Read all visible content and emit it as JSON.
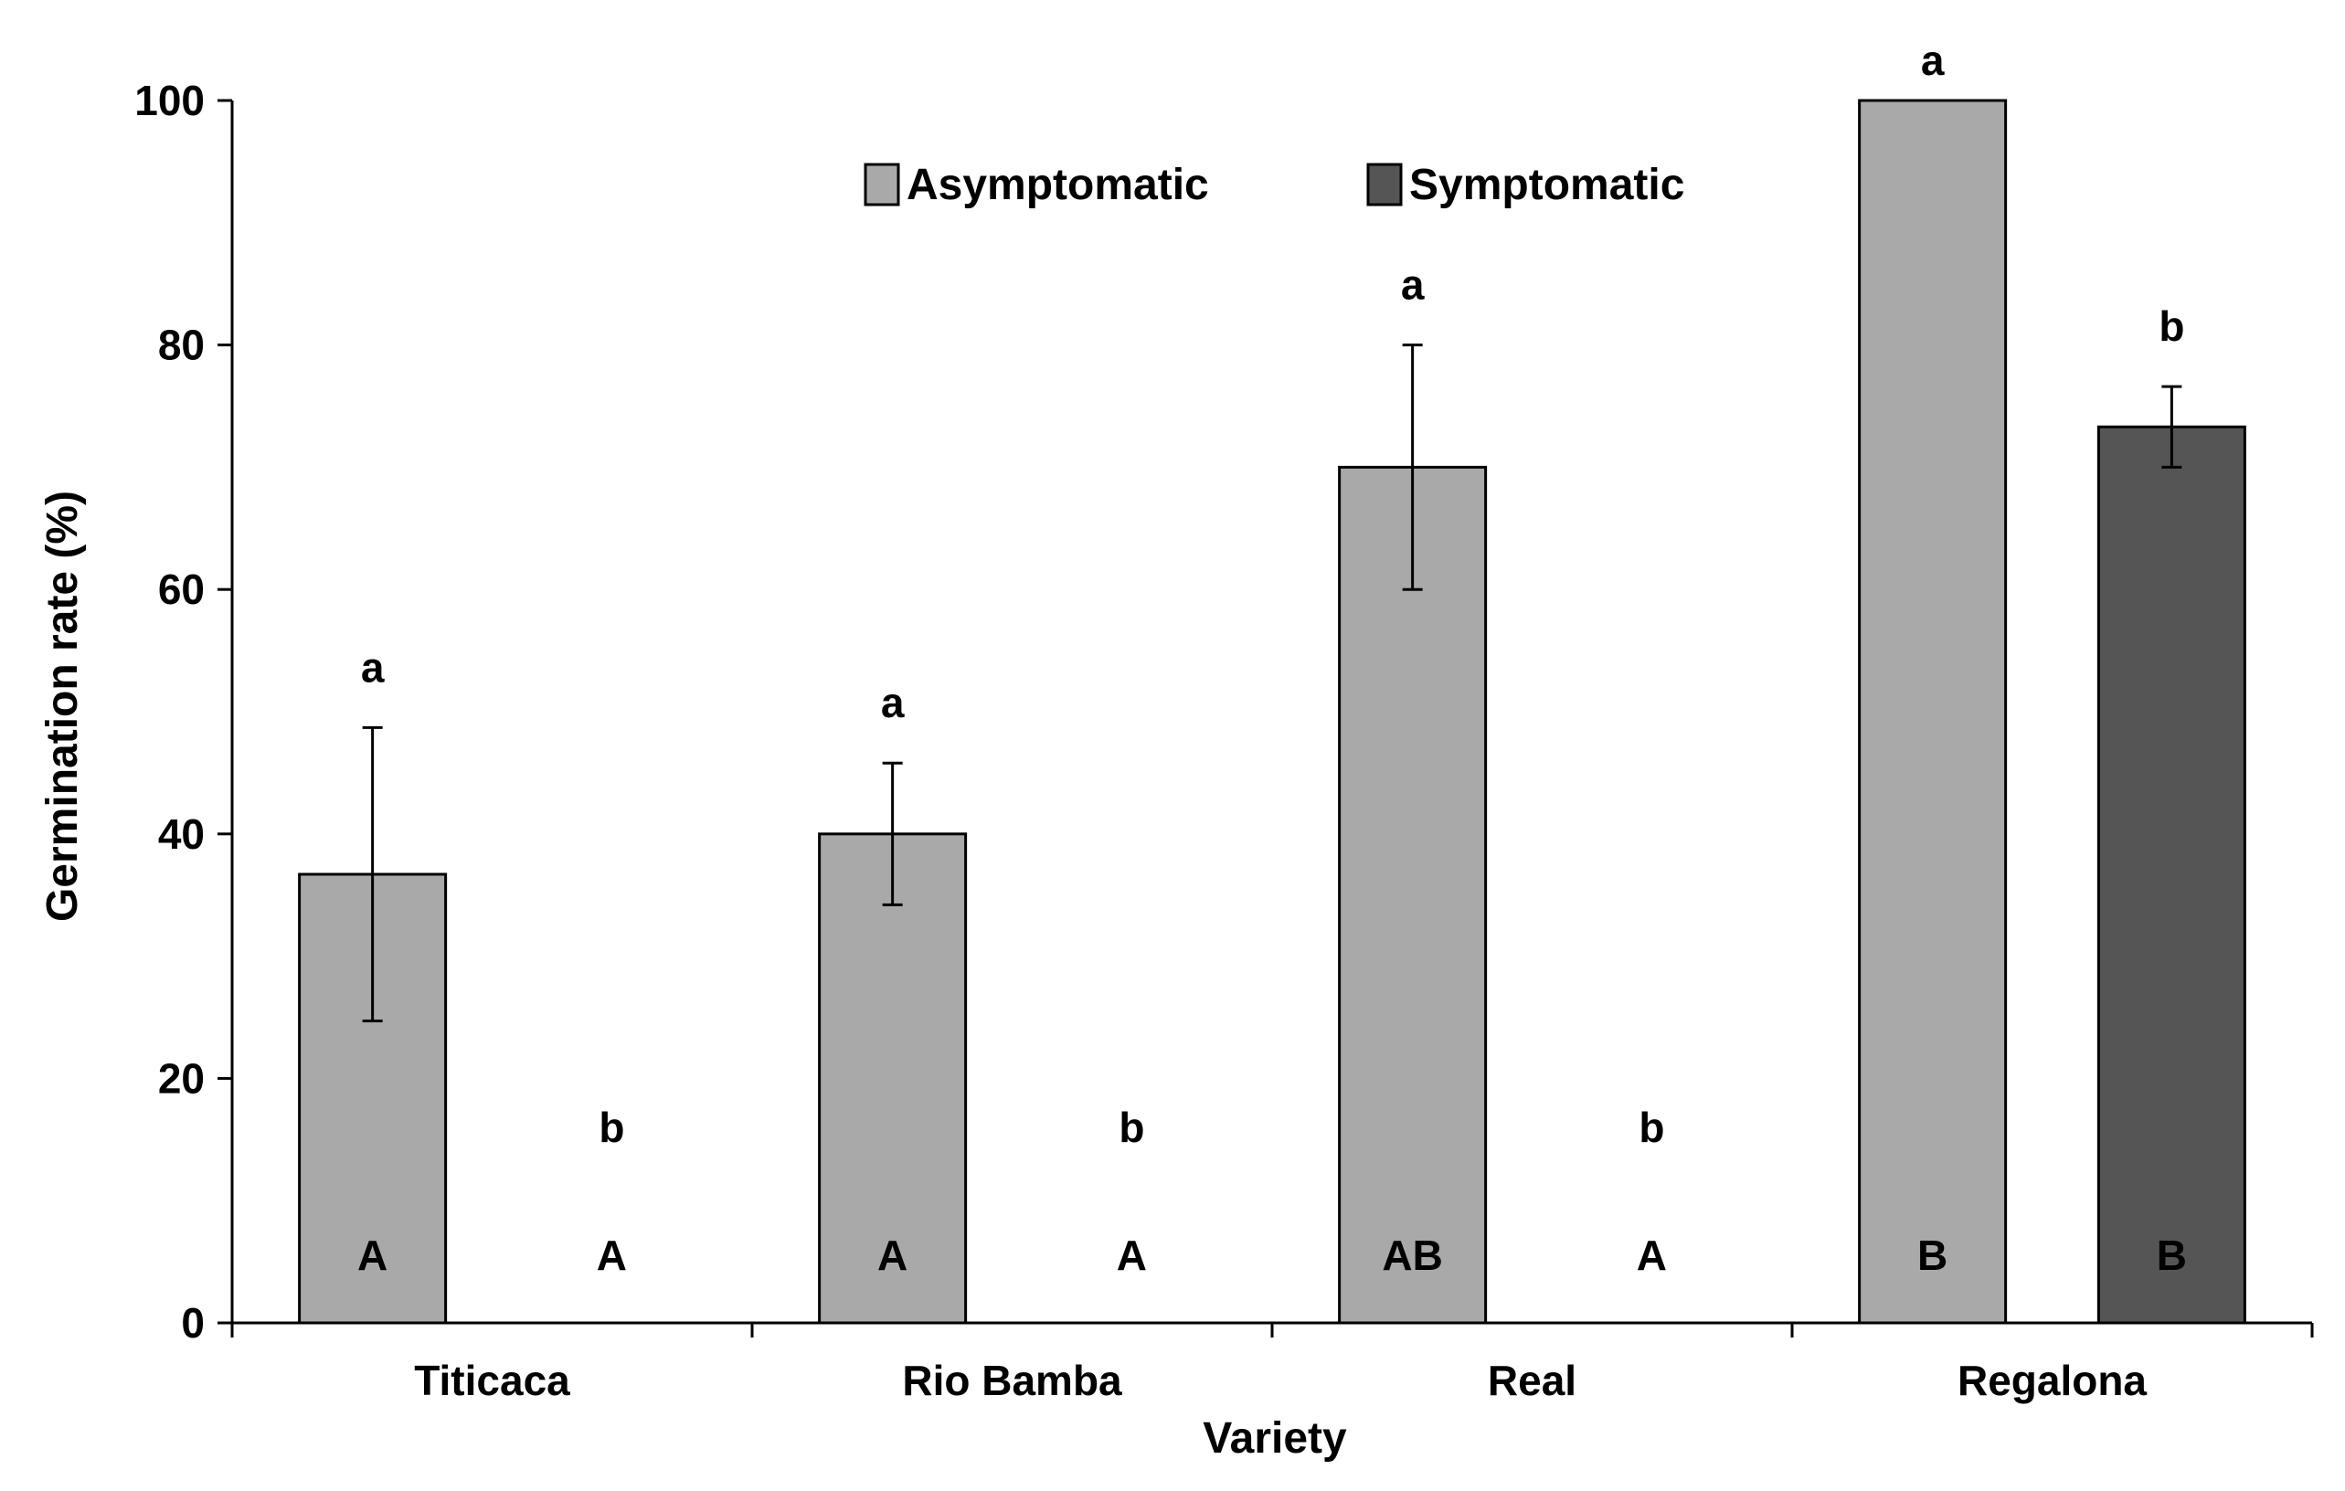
{
  "chart_data": {
    "type": "bar",
    "title": "",
    "xlabel": "Variety",
    "ylabel": "Germination rate (%)",
    "ylim": [
      0,
      100
    ],
    "yticks": [
      0,
      20,
      40,
      60,
      80,
      100
    ],
    "grid": false,
    "legend_position": "top-center",
    "categories": [
      "Titicaca",
      "Rio Bamba",
      "Real",
      "Regalona"
    ],
    "series": [
      {
        "name": "Asymptomatic",
        "color": "#a9a9a9",
        "values": [
          36.7,
          40,
          70,
          100
        ],
        "errors": [
          12,
          5.8,
          10,
          0
        ],
        "top_letters": [
          "a",
          "a",
          "a",
          "a"
        ],
        "base_letters": [
          "A",
          "A",
          "AB",
          "B"
        ]
      },
      {
        "name": "Symptomatic",
        "color": "#555555",
        "values": [
          0,
          0,
          0,
          73.3
        ],
        "errors": [
          0,
          0,
          0,
          3.3
        ],
        "top_letters": [
          "b",
          "b",
          "b",
          "b"
        ],
        "base_letters": [
          "A",
          "A",
          "A",
          "B"
        ]
      }
    ]
  }
}
